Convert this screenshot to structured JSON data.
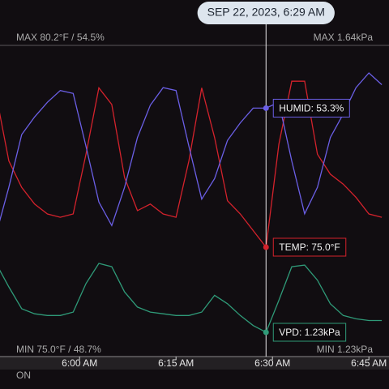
{
  "chart_data": {
    "type": "line",
    "cursor": {
      "label": "SEP 22, 2023, 6:29 AM"
    },
    "max_left": "MAX 80.2°F / 54.5%",
    "max_right": "MAX 1.64kPa",
    "min_left": "MIN 75.0°F / 48.7%",
    "min_right": "MIN 1.23kPa",
    "status": "ON",
    "xlim": [
      "5:48 AM",
      "6:48 AM"
    ],
    "xticks": [
      "6:00 AM",
      "6:15 AM",
      "6:30 AM",
      "6:45 AM"
    ],
    "x": [
      "5:47 AM",
      "5:49 AM",
      "5:51 AM",
      "5:53 AM",
      "5:55 AM",
      "5:57 AM",
      "5:59 AM",
      "6:01 AM",
      "6:03 AM",
      "6:05 AM",
      "6:07 AM",
      "6:09 AM",
      "6:11 AM",
      "6:13 AM",
      "6:15 AM",
      "6:17 AM",
      "6:19 AM",
      "6:21 AM",
      "6:23 AM",
      "6:25 AM",
      "6:27 AM",
      "6:29 AM",
      "6:31 AM",
      "6:33 AM",
      "6:35 AM",
      "6:37 AM",
      "6:39 AM",
      "6:41 AM",
      "6:43 AM",
      "6:45 AM",
      "6:47 AM"
    ],
    "series": [
      {
        "name": "TEMP",
        "color": "#d4222c",
        "ylim": [
          75.0,
          80.2
        ],
        "cursor_label": "TEMP: 75.0°F",
        "values": [
          79.6,
          77.6,
          76.8,
          76.3,
          76.0,
          75.9,
          76.0,
          77.8,
          79.8,
          79.3,
          77.1,
          76.1,
          76.3,
          76.0,
          75.9,
          77.6,
          79.8,
          78.3,
          76.4,
          76.0,
          75.5,
          75.0,
          78.1,
          80.0,
          80.0,
          77.8,
          77.2,
          76.9,
          76.5,
          76.0,
          75.9
        ]
      },
      {
        "name": "HUMID",
        "color": "#6b5fe6",
        "ylim": [
          48.7,
          54.5
        ],
        "cursor_label": "HUMID: 53.3%",
        "values": [
          49.0,
          50.6,
          52.4,
          53.0,
          53.5,
          53.9,
          53.8,
          52.0,
          50.1,
          49.3,
          50.6,
          52.3,
          53.4,
          54.0,
          53.9,
          52.0,
          50.2,
          50.9,
          52.2,
          52.8,
          53.3,
          53.3,
          53.5,
          51.5,
          49.7,
          50.6,
          52.3,
          53.1,
          54.0,
          54.5,
          54.1
        ]
      },
      {
        "name": "VPD",
        "color": "#2f9a78",
        "ylim": [
          1.23,
          1.64
        ],
        "cursor_label": "VPD: 1.23kPa",
        "values": [
          1.64,
          1.5,
          1.37,
          1.34,
          1.33,
          1.33,
          1.35,
          1.52,
          1.64,
          1.62,
          1.47,
          1.38,
          1.35,
          1.34,
          1.33,
          1.33,
          1.35,
          1.45,
          1.4,
          1.33,
          1.27,
          1.23,
          1.42,
          1.62,
          1.63,
          1.54,
          1.4,
          1.33,
          1.31,
          1.3,
          1.3
        ]
      }
    ]
  }
}
